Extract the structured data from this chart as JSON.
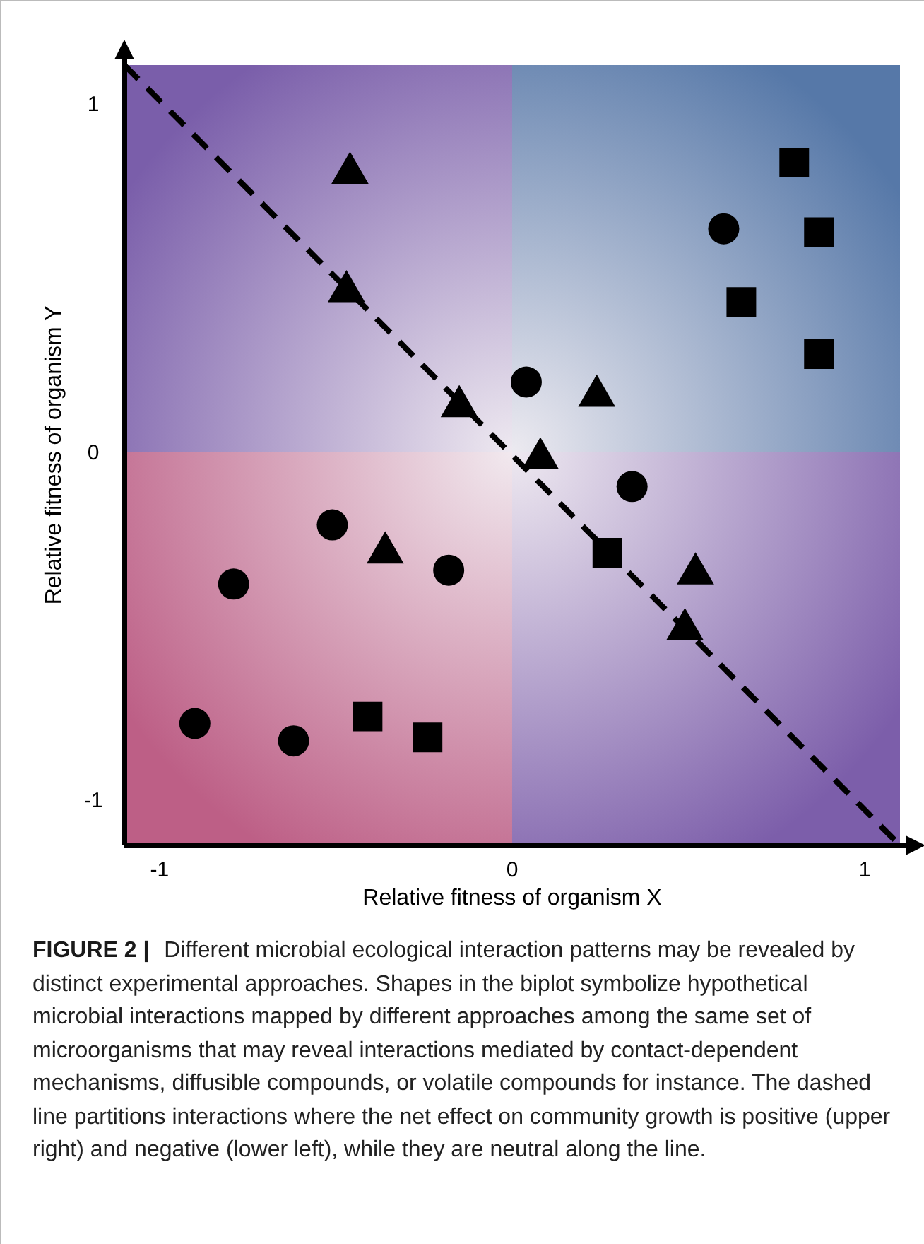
{
  "chart_data": {
    "type": "scatter",
    "xlabel": "Relative fitness of organism X",
    "ylabel": "Relative fitness of organism Y",
    "xlim": [
      -1.1,
      1.1
    ],
    "ylim": [
      -1.13,
      1.11
    ],
    "xticks": [
      -1,
      0,
      1
    ],
    "yticks": [
      -1,
      0,
      1
    ],
    "grid": false,
    "series": [
      {
        "type": "line",
        "color": "#000000",
        "line_style": "dashed",
        "marker": "none",
        "x": [
          -1.1,
          1.1
        ],
        "values": [
          1.11,
          -1.13
        ]
      },
      {
        "color": "#000000",
        "marker": "triangle",
        "x": [
          -0.46,
          -0.47,
          -0.15,
          -0.36,
          0.24,
          0.08,
          0.52,
          0.49
        ],
        "values": [
          0.8,
          0.46,
          0.13,
          -0.29,
          0.16,
          -0.02,
          -0.35,
          -0.51
        ]
      },
      {
        "color": "#000000",
        "marker": "circle",
        "x": [
          -0.51,
          -0.79,
          -0.18,
          -0.9,
          -0.62,
          0.04,
          0.34,
          0.6
        ],
        "values": [
          -0.21,
          -0.38,
          -0.34,
          -0.78,
          -0.83,
          0.2,
          -0.1,
          0.64
        ]
      },
      {
        "color": "#000000",
        "marker": "square",
        "x": [
          -0.41,
          -0.24,
          0.27,
          0.8,
          0.87,
          0.65,
          0.87
        ],
        "values": [
          -0.76,
          -0.82,
          -0.29,
          0.83,
          0.63,
          0.43,
          0.28
        ]
      }
    ],
    "annotations": [
      "FIGURE 2 |",
      "Different microbial ecological interaction patterns may be revealed by distinct experimental approaches. Shapes in the biplot symbolize hypothetical microbial interactions mapped by different approaches among the same set of microorganisms that may reveal interactions mediated by contact-dependent mechanisms, diffusible compounds, or volatile compounds for instance. The dashed line partitions interactions where the net effect on community growth is positive (upper right) and negative (lower left), while they are neutral along the line."
    ]
  }
}
